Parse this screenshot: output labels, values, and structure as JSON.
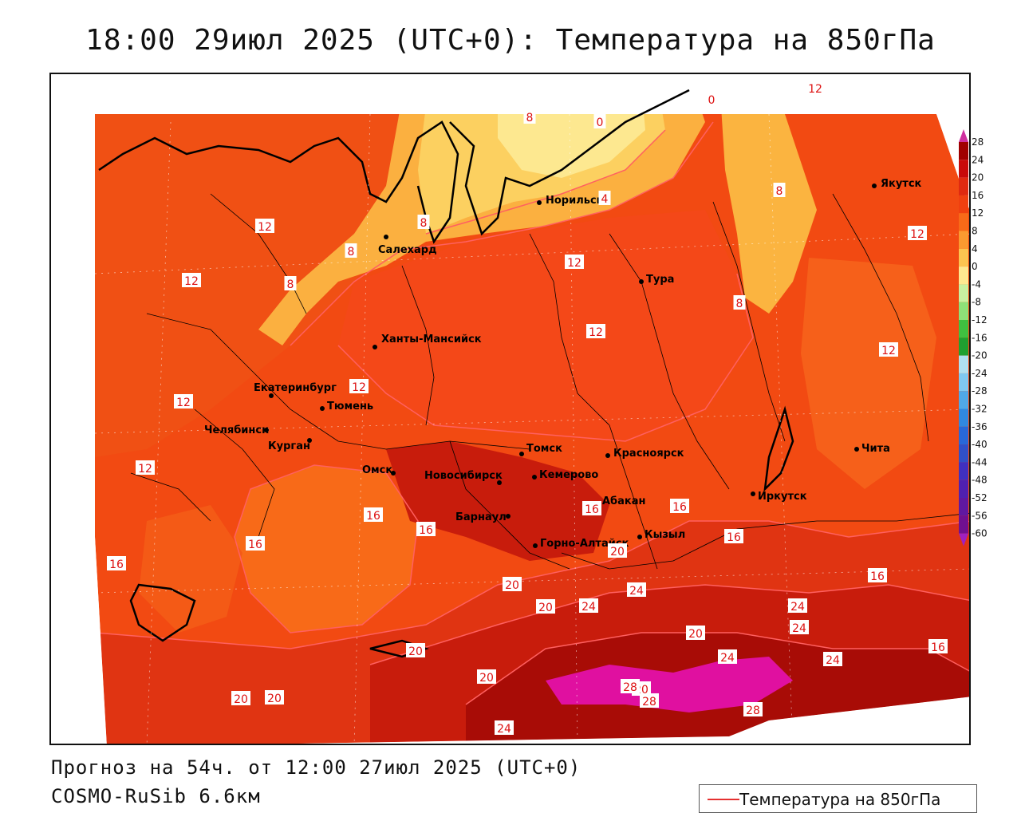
{
  "title": "18:00 29июл 2025 (UTC+0): Температура на 850гПа",
  "forecast_line": "Прогноз на 54ч. от 12:00 27июл 2025 (UTC+0)",
  "model_line": "COSMO-RuSib 6.6км",
  "legend_label": "Температура на 850гПа",
  "legend_line_color": "#e53030",
  "colorbar": {
    "ticks": [
      "28",
      "24",
      "20",
      "16",
      "12",
      "8",
      "4",
      "0",
      "-4",
      "-8",
      "-12",
      "-16",
      "-20",
      "-24",
      "-28",
      "-32",
      "-36",
      "-40",
      "-44",
      "-48",
      "-52",
      "-56",
      "-60"
    ],
    "colors": [
      "#a00000",
      "#c80a0a",
      "#e02a10",
      "#f04010",
      "#f86a18",
      "#fb9a30",
      "#fcc450",
      "#fde890",
      "#c8f0a0",
      "#8ee078",
      "#40c040",
      "#20a030",
      "#b0e0f0",
      "#80c8f0",
      "#50a8e8",
      "#3088e0",
      "#2868d8",
      "#3050c8",
      "#4030c0",
      "#5020b0",
      "#6018a0",
      "#701090"
    ],
    "top_arrow_color": "#d030a0",
    "bottom_arrow_color": "#a020c0"
  },
  "cities": [
    {
      "name": "Норильск"
    },
    {
      "name": "Якутск"
    },
    {
      "name": "Салехард"
    },
    {
      "name": "Тура"
    },
    {
      "name": "Ханты-Мансийск"
    },
    {
      "name": "Екатеринбург"
    },
    {
      "name": "Тюмень"
    },
    {
      "name": "Челябинск"
    },
    {
      "name": "Курган"
    },
    {
      "name": "Омск"
    },
    {
      "name": "Новосибирск"
    },
    {
      "name": "Томск"
    },
    {
      "name": "Кемерово"
    },
    {
      "name": "Красноярск"
    },
    {
      "name": "Абакан"
    },
    {
      "name": "Барнаул"
    },
    {
      "name": "Горно-Алтайск"
    },
    {
      "name": "Кызыл"
    },
    {
      "name": "Иркутск"
    },
    {
      "name": "Чита"
    }
  ],
  "isolines": [
    "12",
    "8",
    "0",
    "0",
    "8",
    "4",
    "12",
    "8",
    "12",
    "8",
    "8",
    "12",
    "8",
    "12",
    "12",
    "12",
    "12",
    "12",
    "12",
    "16",
    "16",
    "16",
    "16",
    "16",
    "16",
    "20",
    "20",
    "16",
    "24",
    "20",
    "24",
    "24",
    "20",
    "24",
    "20",
    "16",
    "20",
    "16",
    "20",
    "24",
    "28",
    "28",
    "28",
    "24",
    "20",
    "20",
    "24"
  ]
}
